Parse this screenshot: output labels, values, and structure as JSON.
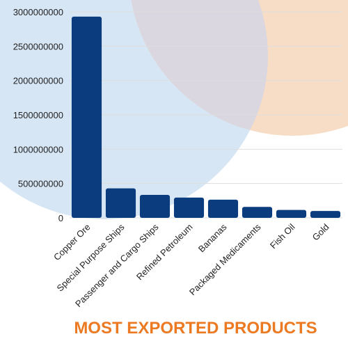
{
  "colors": {
    "bar": "#0b3d7e",
    "title": "#ec7a23",
    "circle_blue": "#d7e6f5",
    "circle_peach": "#f8ddc6",
    "circle_overlap": "#dad7e0",
    "grid": "#dddddd"
  },
  "chart_data": {
    "type": "bar",
    "title": "MOST EXPORTED PRODUCTS",
    "xlabel": "",
    "ylabel": "",
    "ylim": [
      0,
      3000000000
    ],
    "yticks": [
      0,
      500000000,
      1000000000,
      1500000000,
      2000000000,
      2500000000,
      3000000000
    ],
    "ytick_labels": [
      "0",
      "500000000",
      "1000000000",
      "1500000000",
      "2000000000",
      "2500000000",
      "3000000000"
    ],
    "grid": true,
    "categories": [
      "Copper Ore",
      "Special Purpose Ships",
      "Passenger and Cargo Ships",
      "Refined Petroleum",
      "Bananas",
      "Packaged Medicaments",
      "Fish Oil",
      "Gold"
    ],
    "values": [
      2930000000,
      430000000,
      335000000,
      295000000,
      265000000,
      160000000,
      115000000,
      100000000
    ]
  }
}
